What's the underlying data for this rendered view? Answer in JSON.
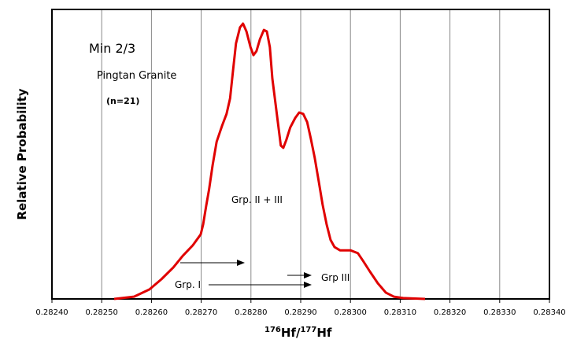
{
  "chart_data": {
    "type": "line",
    "title": "Min 2/3",
    "subtitle": "Pingtan Granite",
    "sample_count": "(n=21)",
    "xlabel_sup1": "176",
    "xlabel_mid": "Hf/",
    "xlabel_sup2": "177",
    "xlabel_end": "Hf",
    "ylabel": "Relative Probability",
    "xlim": [
      0.2824,
      0.2834
    ],
    "ylim": [
      0,
      1
    ],
    "grid": "vertical",
    "x_ticks": [
      "0.28240",
      "0.28250",
      "0.28260",
      "0.28270",
      "0.28280",
      "0.28290",
      "0.28300",
      "0.28310",
      "0.28320",
      "0.28330",
      "0.28340"
    ],
    "line_color": "#e00000",
    "series": [
      {
        "name": "Pingtan Granite",
        "x": [
          0.282525,
          0.282565,
          0.282596,
          0.28262,
          0.282644,
          0.282663,
          0.282683,
          0.282699,
          0.282704,
          0.28271,
          0.282716,
          0.282723,
          0.282731,
          0.282742,
          0.282751,
          0.282758,
          0.282764,
          0.28277,
          0.282778,
          0.282784,
          0.282791,
          0.282799,
          0.282805,
          0.282811,
          0.282818,
          0.282826,
          0.282832,
          0.282838,
          0.282843,
          0.282849,
          0.282856,
          0.28286,
          0.282865,
          0.282871,
          0.282879,
          0.282889,
          0.282897,
          0.282905,
          0.282913,
          0.28292,
          0.282928,
          0.282936,
          0.282944,
          0.282952,
          0.28296,
          0.282968,
          0.282979,
          0.283,
          0.283015,
          0.283026,
          0.283039,
          0.283055,
          0.283071,
          0.283087,
          0.283106,
          0.28315
        ],
        "y": [
          0,
          0.008,
          0.033,
          0.068,
          0.109,
          0.149,
          0.185,
          0.223,
          0.258,
          0.321,
          0.38,
          0.462,
          0.543,
          0.598,
          0.639,
          0.693,
          0.788,
          0.883,
          0.938,
          0.951,
          0.924,
          0.87,
          0.842,
          0.856,
          0.897,
          0.929,
          0.924,
          0.87,
          0.761,
          0.679,
          0.584,
          0.53,
          0.522,
          0.549,
          0.592,
          0.625,
          0.644,
          0.639,
          0.611,
          0.557,
          0.489,
          0.408,
          0.326,
          0.258,
          0.204,
          0.179,
          0.168,
          0.168,
          0.158,
          0.13,
          0.095,
          0.054,
          0.022,
          0.008,
          0.003,
          0
        ]
      }
    ],
    "annotations": {
      "grp23": "Grp. II + III",
      "grp1": "Grp. I",
      "grp3": "Grp III"
    }
  }
}
